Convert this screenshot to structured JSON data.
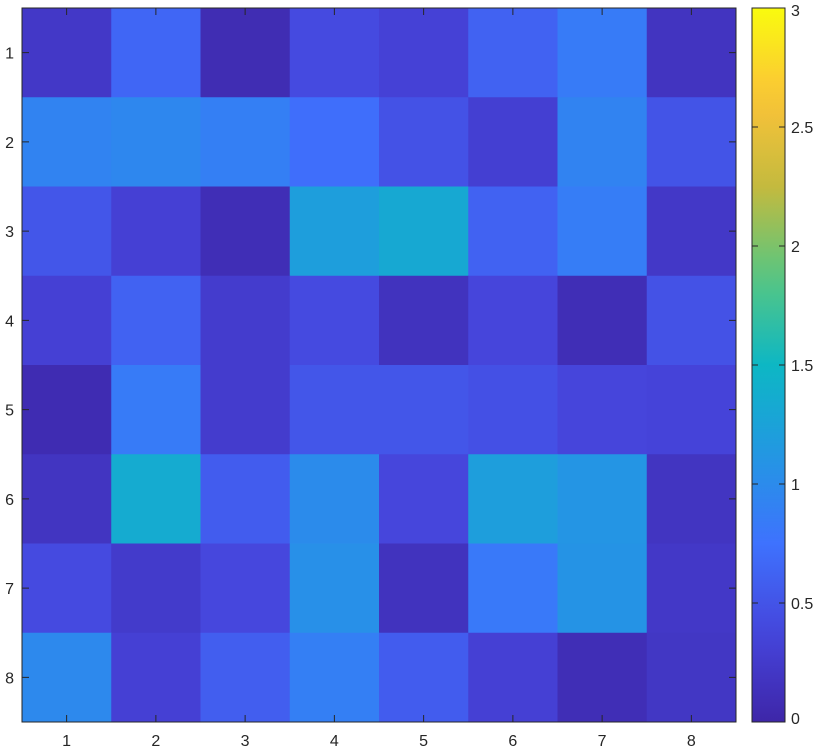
{
  "chart_data": {
    "type": "heatmap",
    "title": "",
    "xlabel": "",
    "ylabel": "",
    "x_categories": [
      "1",
      "2",
      "3",
      "4",
      "5",
      "6",
      "7",
      "8"
    ],
    "y_categories": [
      "1",
      "2",
      "3",
      "4",
      "5",
      "6",
      "7",
      "8"
    ],
    "values": [
      [
        0.22,
        0.65,
        0.08,
        0.42,
        0.33,
        0.62,
        0.84,
        0.17
      ],
      [
        0.92,
        0.96,
        0.88,
        0.72,
        0.48,
        0.3,
        0.92,
        0.5
      ],
      [
        0.52,
        0.32,
        0.1,
        1.2,
        1.32,
        0.62,
        0.86,
        0.22
      ],
      [
        0.32,
        0.62,
        0.27,
        0.42,
        0.16,
        0.37,
        0.1,
        0.48
      ],
      [
        0.07,
        0.84,
        0.27,
        0.52,
        0.52,
        0.47,
        0.37,
        0.35
      ],
      [
        0.18,
        1.35,
        0.57,
        1.0,
        0.38,
        1.2,
        1.1,
        0.18
      ],
      [
        0.42,
        0.25,
        0.39,
        1.05,
        0.16,
        0.82,
        1.08,
        0.22
      ],
      [
        0.98,
        0.32,
        0.58,
        0.88,
        0.57,
        0.32,
        0.1,
        0.2
      ]
    ],
    "clim": [
      0,
      3
    ],
    "colormap": "parula",
    "colorbar": {
      "ticks": [
        0,
        0.5,
        1,
        1.5,
        2,
        2.5,
        3
      ],
      "tick_labels": [
        "0",
        "0.5",
        "1",
        "1.5",
        "2",
        "2.5",
        "3"
      ],
      "placement": "right"
    },
    "x_axis_position": "bottom",
    "y_axis_direction": "reverse",
    "grid": false
  }
}
